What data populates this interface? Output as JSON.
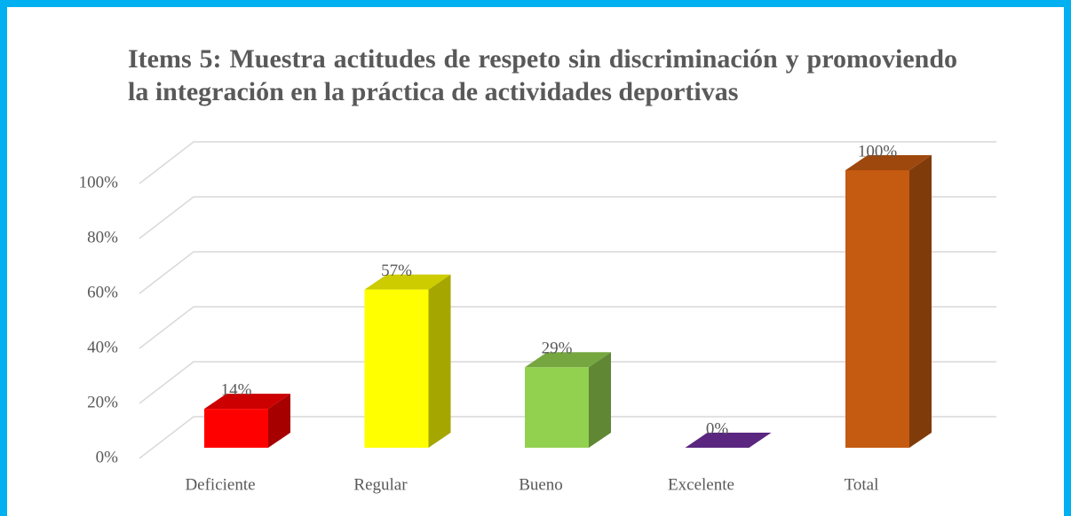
{
  "chart_data": {
    "type": "bar3d",
    "title": "Items 5: Muestra actitudes de respeto sin discriminación y promoviendo la integración en la práctica de actividades deportivas",
    "categories": [
      "Deficiente",
      "Regular",
      "Bueno",
      "Excelente",
      "Total"
    ],
    "values": [
      14,
      57,
      29,
      0,
      100
    ],
    "value_labels": [
      "14%",
      "57%",
      "29%",
      "0%",
      "100%"
    ],
    "colors": [
      "#ff0000",
      "#ffff00",
      "#92d050",
      "#7030a0",
      "#c55a11"
    ],
    "ylim": [
      0,
      100
    ],
    "yticks": [
      {
        "value": 0,
        "label": "0%"
      },
      {
        "value": 20,
        "label": "20%"
      },
      {
        "value": 40,
        "label": "40%"
      },
      {
        "value": 60,
        "label": "60%"
      },
      {
        "value": 80,
        "label": "80%"
      },
      {
        "value": 100,
        "label": "100%"
      }
    ],
    "grid": true
  }
}
